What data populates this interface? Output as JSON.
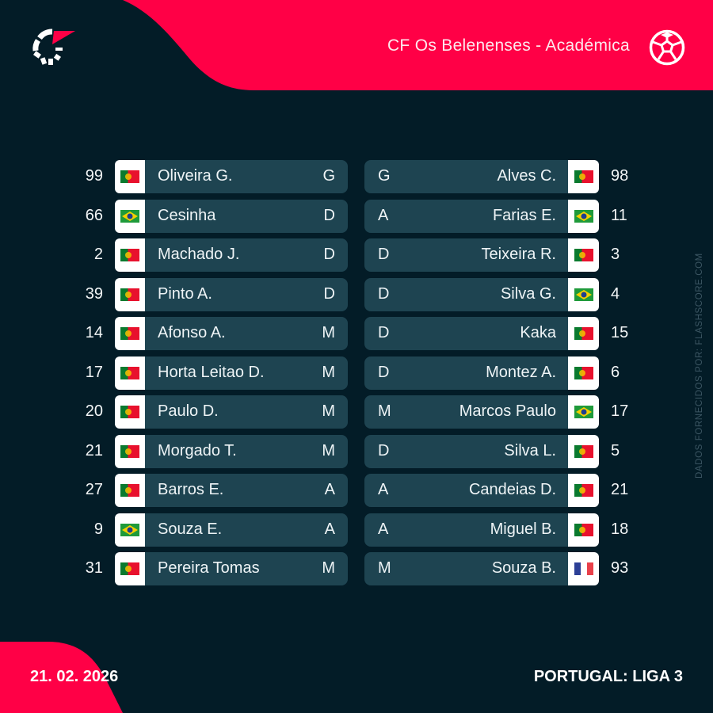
{
  "header": {
    "match_title": "CF Os Belenenses - Académica",
    "logo_icon": "flashscore-logo-icon",
    "sport_icon": "football-icon"
  },
  "colors": {
    "background": "#031c27",
    "accent": "#ff0046",
    "row_bar": "#1e4451",
    "flag_box": "#ffffff"
  },
  "home_team": {
    "name": "CF Os Belenenses",
    "players": [
      {
        "number": "99",
        "flag": "portugal",
        "name": "Oliveira G.",
        "position": "G"
      },
      {
        "number": "66",
        "flag": "brazil",
        "name": "Cesinha",
        "position": "D"
      },
      {
        "number": "2",
        "flag": "portugal",
        "name": "Machado J.",
        "position": "D"
      },
      {
        "number": "39",
        "flag": "portugal",
        "name": "Pinto A.",
        "position": "D"
      },
      {
        "number": "14",
        "flag": "portugal",
        "name": "Afonso A.",
        "position": "M"
      },
      {
        "number": "17",
        "flag": "portugal",
        "name": "Horta Leitao D.",
        "position": "M"
      },
      {
        "number": "20",
        "flag": "portugal",
        "name": "Paulo D.",
        "position": "M"
      },
      {
        "number": "21",
        "flag": "portugal",
        "name": "Morgado T.",
        "position": "M"
      },
      {
        "number": "27",
        "flag": "portugal",
        "name": "Barros E.",
        "position": "A"
      },
      {
        "number": "9",
        "flag": "brazil",
        "name": "Souza E.",
        "position": "A"
      },
      {
        "number": "31",
        "flag": "portugal",
        "name": "Pereira Tomas",
        "position": "M"
      }
    ]
  },
  "away_team": {
    "name": "Académica",
    "players": [
      {
        "number": "98",
        "flag": "portugal",
        "name": "Alves C.",
        "position": "G"
      },
      {
        "number": "11",
        "flag": "brazil",
        "name": "Farias E.",
        "position": "A"
      },
      {
        "number": "3",
        "flag": "portugal",
        "name": "Teixeira R.",
        "position": "D"
      },
      {
        "number": "4",
        "flag": "brazil",
        "name": "Silva G.",
        "position": "D"
      },
      {
        "number": "15",
        "flag": "portugal",
        "name": "Kaka",
        "position": "D"
      },
      {
        "number": "6",
        "flag": "portugal",
        "name": "Montez A.",
        "position": "D"
      },
      {
        "number": "17",
        "flag": "brazil",
        "name": "Marcos Paulo",
        "position": "M"
      },
      {
        "number": "5",
        "flag": "portugal",
        "name": "Silva L.",
        "position": "D"
      },
      {
        "number": "21",
        "flag": "portugal",
        "name": "Candeias D.",
        "position": "A"
      },
      {
        "number": "18",
        "flag": "portugal",
        "name": "Miguel B.",
        "position": "A"
      },
      {
        "number": "93",
        "flag": "france",
        "name": "Souza B.",
        "position": "M"
      }
    ]
  },
  "side_credit": "DADOS FORNECIDOS POR: FLASHSCORE.COM",
  "footer": {
    "date": "21. 02. 2026",
    "league": "PORTUGAL: LIGA 3"
  }
}
